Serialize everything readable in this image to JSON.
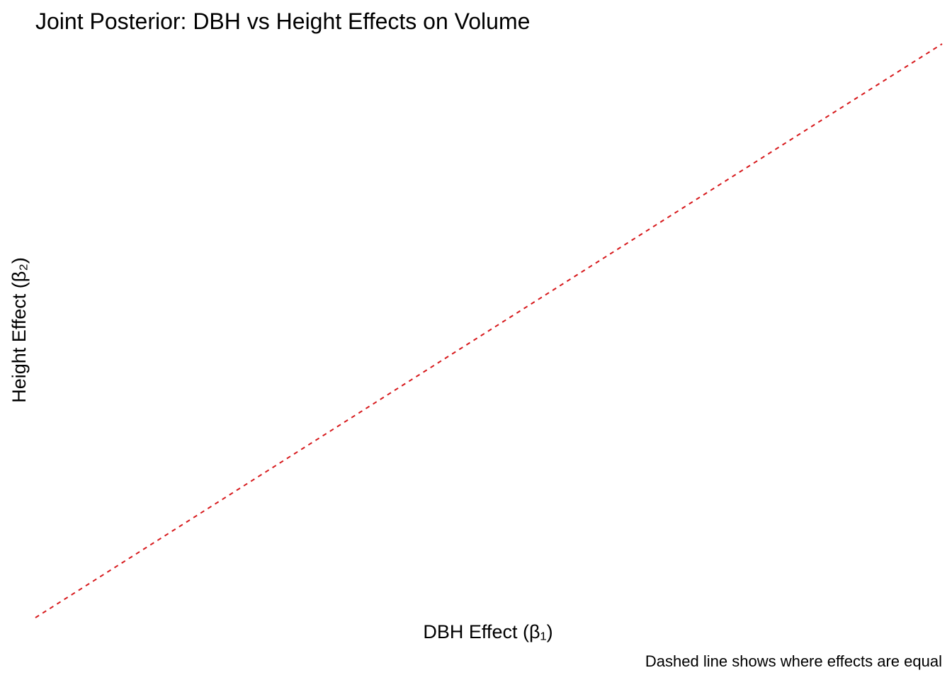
{
  "chart_data": {
    "type": "line",
    "title": "Joint Posterior: DBH vs Height Effects on Volume",
    "xlabel": "DBH Effect (β₁)",
    "ylabel": "Height Effect (β₂)",
    "caption": "Dashed line shows where effects are equal",
    "series": [
      {
        "style": "dashed",
        "color": "#d7191c",
        "x": [
          0,
          1
        ],
        "y": [
          0,
          1
        ]
      }
    ],
    "xlim": [
      0,
      1
    ],
    "ylim": [
      0,
      1
    ],
    "grid": false,
    "legend": "none"
  }
}
